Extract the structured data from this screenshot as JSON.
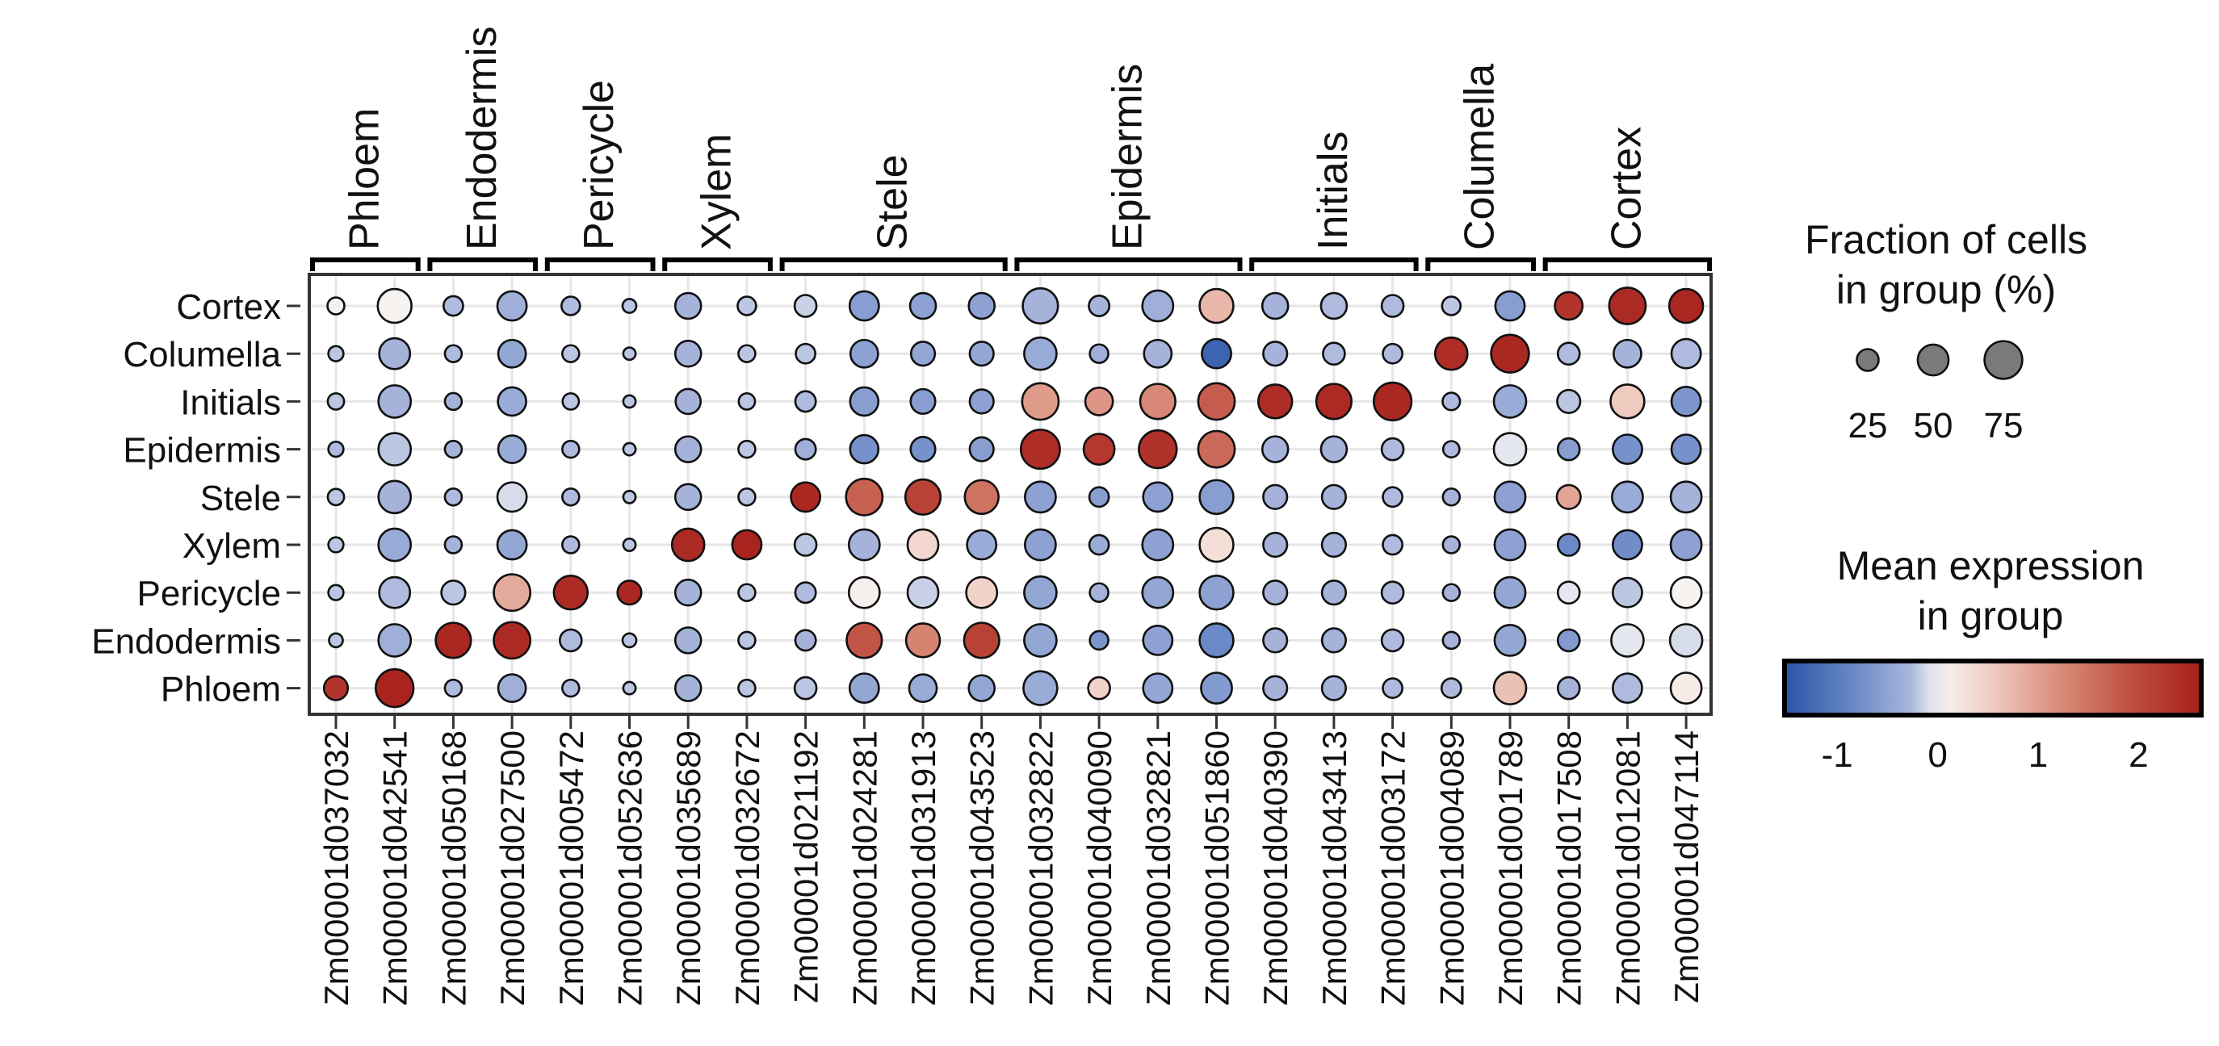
{
  "chart_data": {
    "type": "dotplot",
    "genes": [
      "Zm00001d037032",
      "Zm00001d042541",
      "Zm00001d050168",
      "Zm00001d027500",
      "Zm00001d005472",
      "Zm00001d052636",
      "Zm00001d035689",
      "Zm00001d032672",
      "Zm00001d021192",
      "Zm00001d024281",
      "Zm00001d031913",
      "Zm00001d043523",
      "Zm00001d032822",
      "Zm00001d040090",
      "Zm00001d032821",
      "Zm00001d051860",
      "Zm00001d040390",
      "Zm00001d043413",
      "Zm00001d003172",
      "Zm00001d004089",
      "Zm00001d001789",
      "Zm00001d017508",
      "Zm00001d012081",
      "Zm00001d047114"
    ],
    "groups": [
      {
        "label": "Phloem",
        "count": 2
      },
      {
        "label": "Endodermis",
        "count": 2
      },
      {
        "label": "Pericycle",
        "count": 2
      },
      {
        "label": "Xylem",
        "count": 2
      },
      {
        "label": "Stele",
        "count": 4
      },
      {
        "label": "Epidermis",
        "count": 4
      },
      {
        "label": "Initials",
        "count": 3
      },
      {
        "label": "Columella",
        "count": 2
      },
      {
        "label": "Cortex",
        "count": 3
      }
    ],
    "cell_types": [
      "Cortex",
      "Columella",
      "Initials",
      "Epidermis",
      "Stele",
      "Xylem",
      "Pericycle",
      "Endodermis",
      "Phloem"
    ],
    "fraction_pct": [
      [
        15,
        60,
        20,
        45,
        18,
        10,
        35,
        18,
        25,
        45,
        35,
        35,
        65,
        22,
        50,
        60,
        35,
        35,
        25,
        18,
        45,
        40,
        70,
        60
      ],
      [
        12,
        50,
        15,
        40,
        15,
        8,
        35,
        15,
        20,
        40,
        30,
        30,
        55,
        18,
        40,
        45,
        30,
        25,
        20,
        55,
        75,
        25,
        40,
        45
      ],
      [
        14,
        55,
        15,
        42,
        14,
        8,
        33,
        14,
        22,
        42,
        32,
        30,
        70,
        40,
        65,
        70,
        60,
        65,
        75,
        16,
        55,
        28,
        60,
        45
      ],
      [
        12,
        55,
        15,
        40,
        15,
        8,
        35,
        15,
        22,
        42,
        32,
        30,
        80,
        50,
        75,
        70,
        35,
        35,
        25,
        14,
        55,
        25,
        45,
        45
      ],
      [
        14,
        55,
        15,
        45,
        15,
        8,
        35,
        15,
        45,
        70,
        65,
        60,
        50,
        20,
        45,
        60,
        30,
        30,
        20,
        15,
        50,
        30,
        50,
        50
      ],
      [
        12,
        55,
        15,
        45,
        15,
        8,
        55,
        45,
        25,
        50,
        50,
        45,
        50,
        20,
        50,
        60,
        30,
        30,
        20,
        15,
        50,
        25,
        45,
        50
      ],
      [
        12,
        50,
        30,
        70,
        60,
        30,
        35,
        15,
        22,
        50,
        50,
        50,
        55,
        18,
        50,
        60,
        30,
        30,
        25,
        15,
        50,
        25,
        45,
        50
      ],
      [
        10,
        55,
        65,
        70,
        25,
        10,
        35,
        15,
        22,
        65,
        60,
        65,
        55,
        18,
        45,
        60,
        30,
        30,
        25,
        15,
        50,
        25,
        55,
        55
      ],
      [
        30,
        75,
        15,
        40,
        15,
        8,
        35,
        15,
        25,
        45,
        40,
        35,
        60,
        25,
        45,
        50,
        30,
        30,
        20,
        20,
        55,
        25,
        45,
        50
      ]
    ],
    "mean_expression": [
      [
        0.0,
        0.05,
        -0.25,
        -0.35,
        -0.25,
        -0.2,
        -0.3,
        -0.2,
        -0.15,
        -0.55,
        -0.5,
        -0.5,
        -0.3,
        -0.3,
        -0.35,
        0.75,
        -0.3,
        -0.25,
        -0.25,
        -0.2,
        -0.55,
        2.3,
        2.45,
        2.5
      ],
      [
        -0.2,
        -0.3,
        -0.25,
        -0.45,
        -0.2,
        -0.2,
        -0.3,
        -0.2,
        -0.2,
        -0.5,
        -0.45,
        -0.45,
        -0.4,
        -0.35,
        -0.3,
        -1.3,
        -0.3,
        -0.25,
        -0.25,
        2.4,
        2.5,
        -0.25,
        -0.3,
        -0.25
      ],
      [
        -0.2,
        -0.3,
        -0.3,
        -0.4,
        -0.2,
        -0.2,
        -0.3,
        -0.2,
        -0.25,
        -0.55,
        -0.55,
        -0.5,
        1.05,
        1.1,
        1.25,
        1.75,
        2.4,
        2.45,
        2.5,
        -0.25,
        -0.4,
        -0.2,
        0.55,
        -0.65
      ],
      [
        -0.25,
        -0.2,
        -0.3,
        -0.4,
        -0.25,
        -0.2,
        -0.3,
        -0.2,
        -0.35,
        -0.7,
        -0.7,
        -0.55,
        2.4,
        2.25,
        2.35,
        1.6,
        -0.3,
        -0.3,
        -0.25,
        -0.25,
        -0.05,
        -0.55,
        -0.7,
        -0.7
      ],
      [
        -0.2,
        -0.3,
        -0.25,
        -0.1,
        -0.25,
        -0.2,
        -0.3,
        -0.2,
        2.5,
        1.7,
        2.1,
        1.5,
        -0.5,
        -0.55,
        -0.5,
        -0.55,
        -0.3,
        -0.3,
        -0.25,
        -0.3,
        -0.5,
        0.95,
        -0.4,
        -0.3
      ],
      [
        -0.2,
        -0.4,
        -0.3,
        -0.45,
        -0.25,
        -0.2,
        2.45,
        2.55,
        -0.2,
        -0.3,
        0.4,
        -0.4,
        -0.5,
        -0.4,
        -0.5,
        0.3,
        -0.3,
        -0.3,
        -0.25,
        -0.3,
        -0.5,
        -0.8,
        -0.75,
        -0.5
      ],
      [
        -0.2,
        -0.25,
        -0.2,
        0.9,
        2.45,
        2.5,
        -0.3,
        -0.2,
        -0.25,
        0.1,
        -0.15,
        0.45,
        -0.45,
        -0.3,
        -0.45,
        -0.5,
        -0.3,
        -0.3,
        -0.25,
        -0.3,
        -0.45,
        -0.05,
        -0.2,
        0.05
      ],
      [
        -0.2,
        -0.35,
        2.5,
        2.45,
        -0.25,
        -0.2,
        -0.3,
        -0.2,
        -0.3,
        1.85,
        1.3,
        2.1,
        -0.45,
        -0.65,
        -0.5,
        -0.8,
        -0.3,
        -0.3,
        -0.25,
        -0.3,
        -0.45,
        -0.6,
        -0.05,
        -0.1
      ],
      [
        2.3,
        2.55,
        -0.25,
        -0.35,
        -0.25,
        -0.2,
        -0.3,
        -0.2,
        -0.2,
        -0.45,
        -0.4,
        -0.45,
        -0.4,
        0.45,
        -0.45,
        -0.6,
        -0.3,
        -0.3,
        -0.25,
        -0.25,
        0.65,
        -0.3,
        -0.25,
        0.15
      ]
    ],
    "size_legend": {
      "title_line1": "Fraction of cells",
      "title_line2": "in group (%)",
      "values": [
        25,
        50,
        75
      ],
      "labels": [
        "25",
        "50",
        "75"
      ]
    },
    "color_legend": {
      "title_line1": "Mean expression",
      "title_line2": "in group",
      "range": [
        -1.5,
        2.6
      ],
      "ticks": [
        -1,
        0,
        1,
        2
      ],
      "tick_labels": [
        "-1",
        "0",
        "1",
        "2"
      ],
      "colormap": "RdBu_r",
      "low_color": "#2b55a8",
      "mid_color": "#f7f6f4",
      "high_color": "#a7201c"
    }
  }
}
